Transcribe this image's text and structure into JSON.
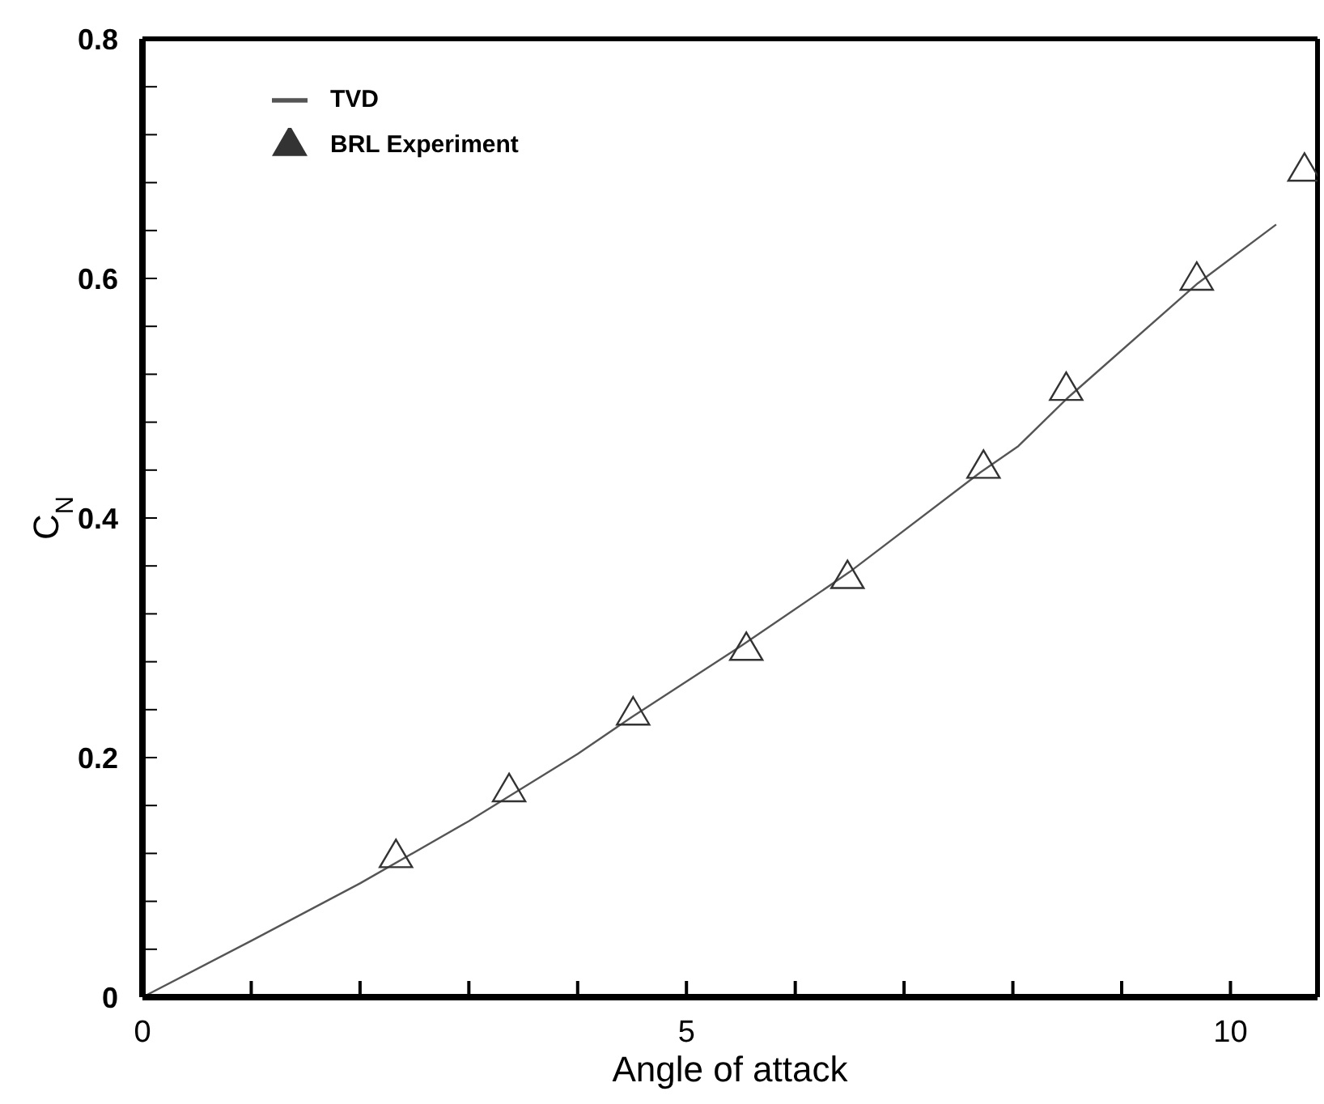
{
  "chart_data": {
    "type": "line",
    "xlabel": "Angle of attack",
    "ylabel": "C$_{N}$",
    "xlim": [
      0,
      10.8
    ],
    "xticks": [
      0,
      {
        "value": 1,
        "label": null
      },
      {
        "value": 2,
        "label": null
      },
      {
        "value": 3,
        "label": null
      },
      {
        "value": 4,
        "label": null
      },
      5,
      {
        "value": 6,
        "label": null
      },
      {
        "value": 7,
        "label": null
      },
      {
        "value": 8,
        "label": null
      },
      {
        "value": 9,
        "label": null
      },
      10
    ],
    "ylim": [
      0,
      0.8
    ],
    "yticks": [
      0,
      {
        "value": 0.04,
        "label": null
      },
      {
        "value": 0.08,
        "label": null
      },
      {
        "value": 0.12,
        "label": null
      },
      {
        "value": 0.16,
        "label": null
      },
      0.2,
      {
        "value": 0.24,
        "label": null
      },
      {
        "value": 0.28,
        "label": null
      },
      {
        "value": 0.32,
        "label": null
      },
      {
        "value": 0.36,
        "label": null
      },
      0.4,
      {
        "value": 0.44,
        "label": null
      },
      {
        "value": 0.48,
        "label": null
      },
      {
        "value": 0.52,
        "label": null
      },
      {
        "value": 0.56,
        "label": null
      },
      0.6,
      {
        "value": 0.64,
        "label": null
      },
      {
        "value": 0.68,
        "label": null
      },
      {
        "value": 0.72,
        "label": null
      },
      {
        "value": 0.76,
        "label": null
      },
      0.8
    ],
    "legend": "top left",
    "series": [
      {
        "name": "TVD",
        "color": "#555555",
        "marker": "none",
        "line_style": "solid",
        "x": [
          0,
          1,
          2,
          3,
          4,
          4.5,
          5.5,
          6.5,
          7.7,
          8.05,
          8.5,
          9.7,
          10.42
        ],
        "values": [
          0,
          0.047,
          0.095,
          0.147,
          0.203,
          0.234,
          0.293,
          0.355,
          0.438,
          0.46,
          0.5,
          0.596,
          0.645
        ]
      },
      {
        "name": "BRL Experiment",
        "type": "scatter",
        "color": "#333333",
        "marker": "triangle",
        "x": [
          2.33,
          3.37,
          4.51,
          5.55,
          6.48,
          7.73,
          8.49,
          9.69,
          10.68
        ],
        "values": [
          0.118,
          0.173,
          0.237,
          0.291,
          0.351,
          0.443,
          0.508,
          0.6,
          0.691
        ]
      }
    ]
  }
}
